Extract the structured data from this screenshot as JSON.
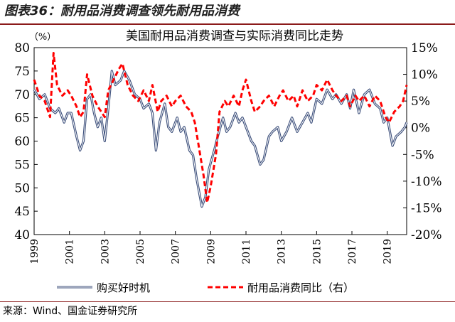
{
  "figure": {
    "title": "图表36：耐用品消费调查领先耐用品消费",
    "source": "来源：Wind、国金证券研究所"
  },
  "chart_data": {
    "type": "line",
    "title": "美国耐用品消费调查与实际消费同比走势",
    "ylabel_left": "（%）",
    "x_ticks": [
      "1999",
      "2001",
      "2003",
      "2005",
      "2007",
      "2009",
      "2011",
      "2013",
      "2015",
      "2017",
      "2019"
    ],
    "xlim": [
      1999,
      2020.1
    ],
    "ylim_left": [
      40,
      80
    ],
    "yticks_left": [
      "40",
      "45",
      "50",
      "55",
      "60",
      "65",
      "70",
      "75",
      "80"
    ],
    "ylim_right": [
      -20,
      15
    ],
    "yticks_right": [
      "-20%",
      "-15%",
      "-10%",
      "-5%",
      "0%",
      "5%",
      "10%",
      "15%"
    ],
    "legend_position": "bottom",
    "grid": false,
    "series": [
      {
        "name": "购买好时机",
        "axis": "left",
        "color": "#3b4e7a",
        "points": [
          [
            1999.0,
            71
          ],
          [
            1999.3,
            69
          ],
          [
            1999.6,
            70
          ],
          [
            1999.9,
            67
          ],
          [
            2000.2,
            66
          ],
          [
            2000.4,
            67
          ],
          [
            2000.7,
            64
          ],
          [
            2000.9,
            66
          ],
          [
            2001.1,
            66
          ],
          [
            2001.4,
            61
          ],
          [
            2001.6,
            58
          ],
          [
            2001.8,
            60
          ],
          [
            2002.0,
            69
          ],
          [
            2002.2,
            70
          ],
          [
            2002.4,
            66
          ],
          [
            2002.6,
            63
          ],
          [
            2002.8,
            65
          ],
          [
            2003.0,
            60
          ],
          [
            2003.2,
            67
          ],
          [
            2003.4,
            75
          ],
          [
            2003.6,
            72
          ],
          [
            2003.9,
            73
          ],
          [
            2004.1,
            75
          ],
          [
            2004.4,
            73
          ],
          [
            2004.7,
            70
          ],
          [
            2005.0,
            69
          ],
          [
            2005.2,
            67
          ],
          [
            2005.5,
            68
          ],
          [
            2005.7,
            66
          ],
          [
            2005.9,
            58
          ],
          [
            2006.1,
            64
          ],
          [
            2006.4,
            68
          ],
          [
            2006.6,
            63
          ],
          [
            2006.8,
            62
          ],
          [
            2007.1,
            65
          ],
          [
            2007.3,
            62
          ],
          [
            2007.5,
            63
          ],
          [
            2007.8,
            58
          ],
          [
            2008.0,
            57
          ],
          [
            2008.2,
            52
          ],
          [
            2008.5,
            46
          ],
          [
            2008.7,
            48
          ],
          [
            2008.9,
            54
          ],
          [
            2009.2,
            58
          ],
          [
            2009.4,
            61
          ],
          [
            2009.7,
            65
          ],
          [
            2009.9,
            62
          ],
          [
            2010.1,
            63
          ],
          [
            2010.4,
            66
          ],
          [
            2010.6,
            64
          ],
          [
            2010.8,
            65
          ],
          [
            2011.0,
            63
          ],
          [
            2011.3,
            60
          ],
          [
            2011.5,
            59
          ],
          [
            2011.8,
            55
          ],
          [
            2012.0,
            56
          ],
          [
            2012.3,
            61
          ],
          [
            2012.5,
            62
          ],
          [
            2012.8,
            63
          ],
          [
            2013.0,
            60
          ],
          [
            2013.3,
            62
          ],
          [
            2013.6,
            65
          ],
          [
            2013.9,
            62
          ],
          [
            2014.2,
            64
          ],
          [
            2014.5,
            66
          ],
          [
            2014.7,
            64
          ],
          [
            2015.0,
            69
          ],
          [
            2015.3,
            68
          ],
          [
            2015.6,
            71
          ],
          [
            2015.9,
            69
          ],
          [
            2016.1,
            70
          ],
          [
            2016.4,
            68
          ],
          [
            2016.7,
            70
          ],
          [
            2016.9,
            67
          ],
          [
            2017.1,
            71
          ],
          [
            2017.4,
            66
          ],
          [
            2017.7,
            70
          ],
          [
            2018.0,
            71
          ],
          [
            2018.3,
            68
          ],
          [
            2018.6,
            67
          ],
          [
            2018.8,
            64
          ],
          [
            2019.0,
            65
          ],
          [
            2019.3,
            59
          ],
          [
            2019.5,
            61
          ],
          [
            2019.8,
            62
          ],
          [
            2020.0,
            63
          ],
          [
            2020.1,
            64
          ]
        ]
      },
      {
        "name": "耐用品消费同比（右）",
        "axis": "right",
        "color": "#ff0000",
        "dashed": true,
        "points": [
          [
            1999.0,
            9
          ],
          [
            1999.3,
            6
          ],
          [
            1999.6,
            5
          ],
          [
            1999.9,
            2
          ],
          [
            2000.1,
            14
          ],
          [
            2000.3,
            8
          ],
          [
            2000.6,
            6
          ],
          [
            2000.9,
            7
          ],
          [
            2001.1,
            6
          ],
          [
            2001.4,
            4
          ],
          [
            2001.6,
            2
          ],
          [
            2001.8,
            3
          ],
          [
            2002.0,
            10
          ],
          [
            2002.3,
            6
          ],
          [
            2002.6,
            4
          ],
          [
            2002.8,
            3
          ],
          [
            2003.0,
            2
          ],
          [
            2003.2,
            7
          ],
          [
            2003.5,
            9
          ],
          [
            2003.8,
            11
          ],
          [
            2004.0,
            12
          ],
          [
            2004.3,
            8
          ],
          [
            2004.6,
            6
          ],
          [
            2004.9,
            5
          ],
          [
            2005.2,
            7
          ],
          [
            2005.5,
            5
          ],
          [
            2005.7,
            8
          ],
          [
            2006.0,
            3
          ],
          [
            2006.2,
            5
          ],
          [
            2006.5,
            6
          ],
          [
            2006.8,
            4
          ],
          [
            2007.0,
            5
          ],
          [
            2007.3,
            6
          ],
          [
            2007.6,
            4
          ],
          [
            2007.9,
            3
          ],
          [
            2008.1,
            1
          ],
          [
            2008.3,
            -3
          ],
          [
            2008.6,
            -9
          ],
          [
            2008.8,
            -14
          ],
          [
            2009.0,
            -11
          ],
          [
            2009.3,
            -5
          ],
          [
            2009.5,
            3
          ],
          [
            2009.8,
            5
          ],
          [
            2010.0,
            4
          ],
          [
            2010.3,
            6
          ],
          [
            2010.6,
            4
          ],
          [
            2010.8,
            7
          ],
          [
            2011.0,
            9
          ],
          [
            2011.3,
            5
          ],
          [
            2011.5,
            3
          ],
          [
            2011.8,
            4
          ],
          [
            2012.0,
            5
          ],
          [
            2012.3,
            6
          ],
          [
            2012.6,
            4
          ],
          [
            2012.9,
            6
          ],
          [
            2013.1,
            7
          ],
          [
            2013.4,
            5
          ],
          [
            2013.7,
            6
          ],
          [
            2013.9,
            4
          ],
          [
            2014.2,
            7
          ],
          [
            2014.5,
            5
          ],
          [
            2014.8,
            6
          ],
          [
            2015.0,
            8
          ],
          [
            2015.3,
            7
          ],
          [
            2015.6,
            9
          ],
          [
            2015.9,
            7
          ],
          [
            2016.1,
            6
          ],
          [
            2016.4,
            5
          ],
          [
            2016.7,
            6
          ],
          [
            2016.9,
            4
          ],
          [
            2017.2,
            6
          ],
          [
            2017.4,
            5
          ],
          [
            2017.7,
            6
          ],
          [
            2018.0,
            4
          ],
          [
            2018.3,
            6
          ],
          [
            2018.6,
            5
          ],
          [
            2018.9,
            2
          ],
          [
            2019.1,
            1
          ],
          [
            2019.4,
            3
          ],
          [
            2019.7,
            4
          ],
          [
            2019.9,
            5
          ],
          [
            2020.1,
            8
          ]
        ]
      }
    ]
  }
}
